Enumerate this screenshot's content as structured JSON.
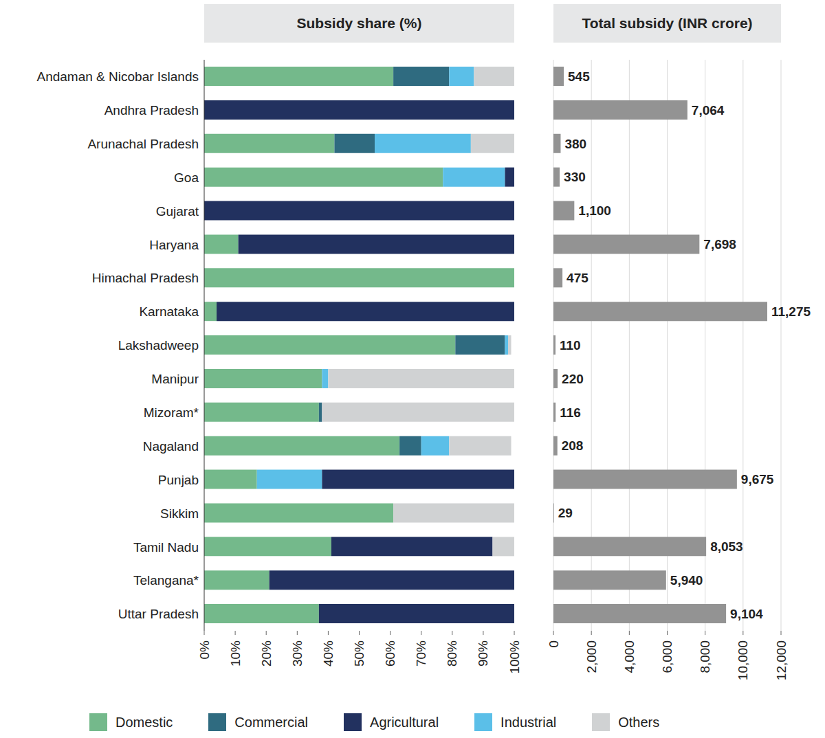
{
  "chart_data": [
    {
      "type": "bar",
      "title": "Subsidy share (%)",
      "orientation": "horizontal",
      "stacked": true,
      "grid": false,
      "legend": "bottom",
      "categories": [
        "Andaman & Nicobar Islands",
        "Andhra Pradesh",
        "Arunachal Pradesh",
        "Goa",
        "Gujarat",
        "Haryana",
        "Himachal Pradesh",
        "Karnataka",
        "Lakshadweep",
        "Manipur",
        "Mizoram*",
        "Nagaland",
        "Punjab",
        "Sikkim",
        "Tamil Nadu",
        "Telangana*",
        "Uttar Pradesh"
      ],
      "xlim": [
        0,
        100
      ],
      "xticks": [
        {
          "value": 0,
          "label": "0%"
        },
        {
          "value": 10,
          "label": "10%"
        },
        {
          "value": 20,
          "label": "20%"
        },
        {
          "value": 30,
          "label": "30%"
        },
        {
          "value": 40,
          "label": "40%"
        },
        {
          "value": 50,
          "label": "50%"
        },
        {
          "value": 60,
          "label": "60%"
        },
        {
          "value": 70,
          "label": "70%"
        },
        {
          "value": 80,
          "label": "80%"
        },
        {
          "value": 90,
          "label": "90%"
        },
        {
          "value": 100,
          "label": "100%"
        }
      ],
      "series": [
        {
          "name": "Domestic",
          "color": "#74b98b",
          "values": [
            61,
            0,
            42,
            77,
            0,
            11,
            100,
            4,
            81,
            38,
            37,
            63,
            17,
            61,
            41,
            21,
            37
          ]
        },
        {
          "name": "Commercial",
          "color": "#2f6b80",
          "values": [
            18,
            0,
            13,
            0,
            0,
            0,
            0,
            0,
            16,
            0,
            1,
            7,
            0,
            0,
            0,
            0,
            0
          ]
        },
        {
          "name": "Agricultural",
          "color": "#22315f",
          "values": [
            0,
            100,
            0,
            3,
            100,
            89,
            0,
            96,
            0,
            0,
            0,
            0,
            62,
            0,
            52,
            79,
            63
          ]
        },
        {
          "name": "Industrial",
          "color": "#5bbfe8",
          "values": [
            8,
            0,
            31,
            20,
            0,
            0,
            0,
            0,
            1,
            2,
            0,
            9,
            21,
            0,
            0,
            0,
            0
          ]
        },
        {
          "name": "Others",
          "color": "#d0d2d3",
          "values": [
            13,
            0,
            14,
            0,
            0,
            0,
            0,
            0,
            1,
            60,
            62,
            20,
            0,
            39,
            7,
            0,
            0
          ]
        }
      ]
    },
    {
      "type": "bar",
      "title": "Total subsidy (INR crore)",
      "orientation": "horizontal",
      "grid": true,
      "data_labels": true,
      "tick_labels": "x",
      "categories": [
        "Andaman & Nicobar Islands",
        "Andhra Pradesh",
        "Arunachal Pradesh",
        "Goa",
        "Gujarat",
        "Haryana",
        "Himachal Pradesh",
        "Karnataka",
        "Lakshadweep",
        "Manipur",
        "Mizoram*",
        "Nagaland",
        "Punjab",
        "Sikkim",
        "Tamil Nadu",
        "Telangana*",
        "Uttar Pradesh"
      ],
      "xlim": [
        0,
        12000
      ],
      "xticks": [
        0,
        {
          "value": 2000,
          "label": "2,000"
        },
        {
          "value": 4000,
          "label": "4,000"
        },
        {
          "value": 6000,
          "label": "6,000"
        },
        {
          "value": 8000,
          "label": "8,000"
        },
        {
          "value": 10000,
          "label": "10,000"
        },
        {
          "value": 12000,
          "label": "12,000"
        }
      ],
      "color": "#939393",
      "values": [
        545,
        7064,
        380,
        330,
        1100,
        7698,
        475,
        11275,
        110,
        220,
        116,
        208,
        9675,
        29,
        8053,
        5940,
        9104
      ],
      "value_labels": [
        "545",
        "7,064",
        "380",
        "330",
        "1,100",
        "7,698",
        "475",
        "11,275",
        "110",
        "220",
        "116",
        "208",
        "9,675",
        "29",
        "8,053",
        "5,940",
        "9,104"
      ]
    }
  ]
}
